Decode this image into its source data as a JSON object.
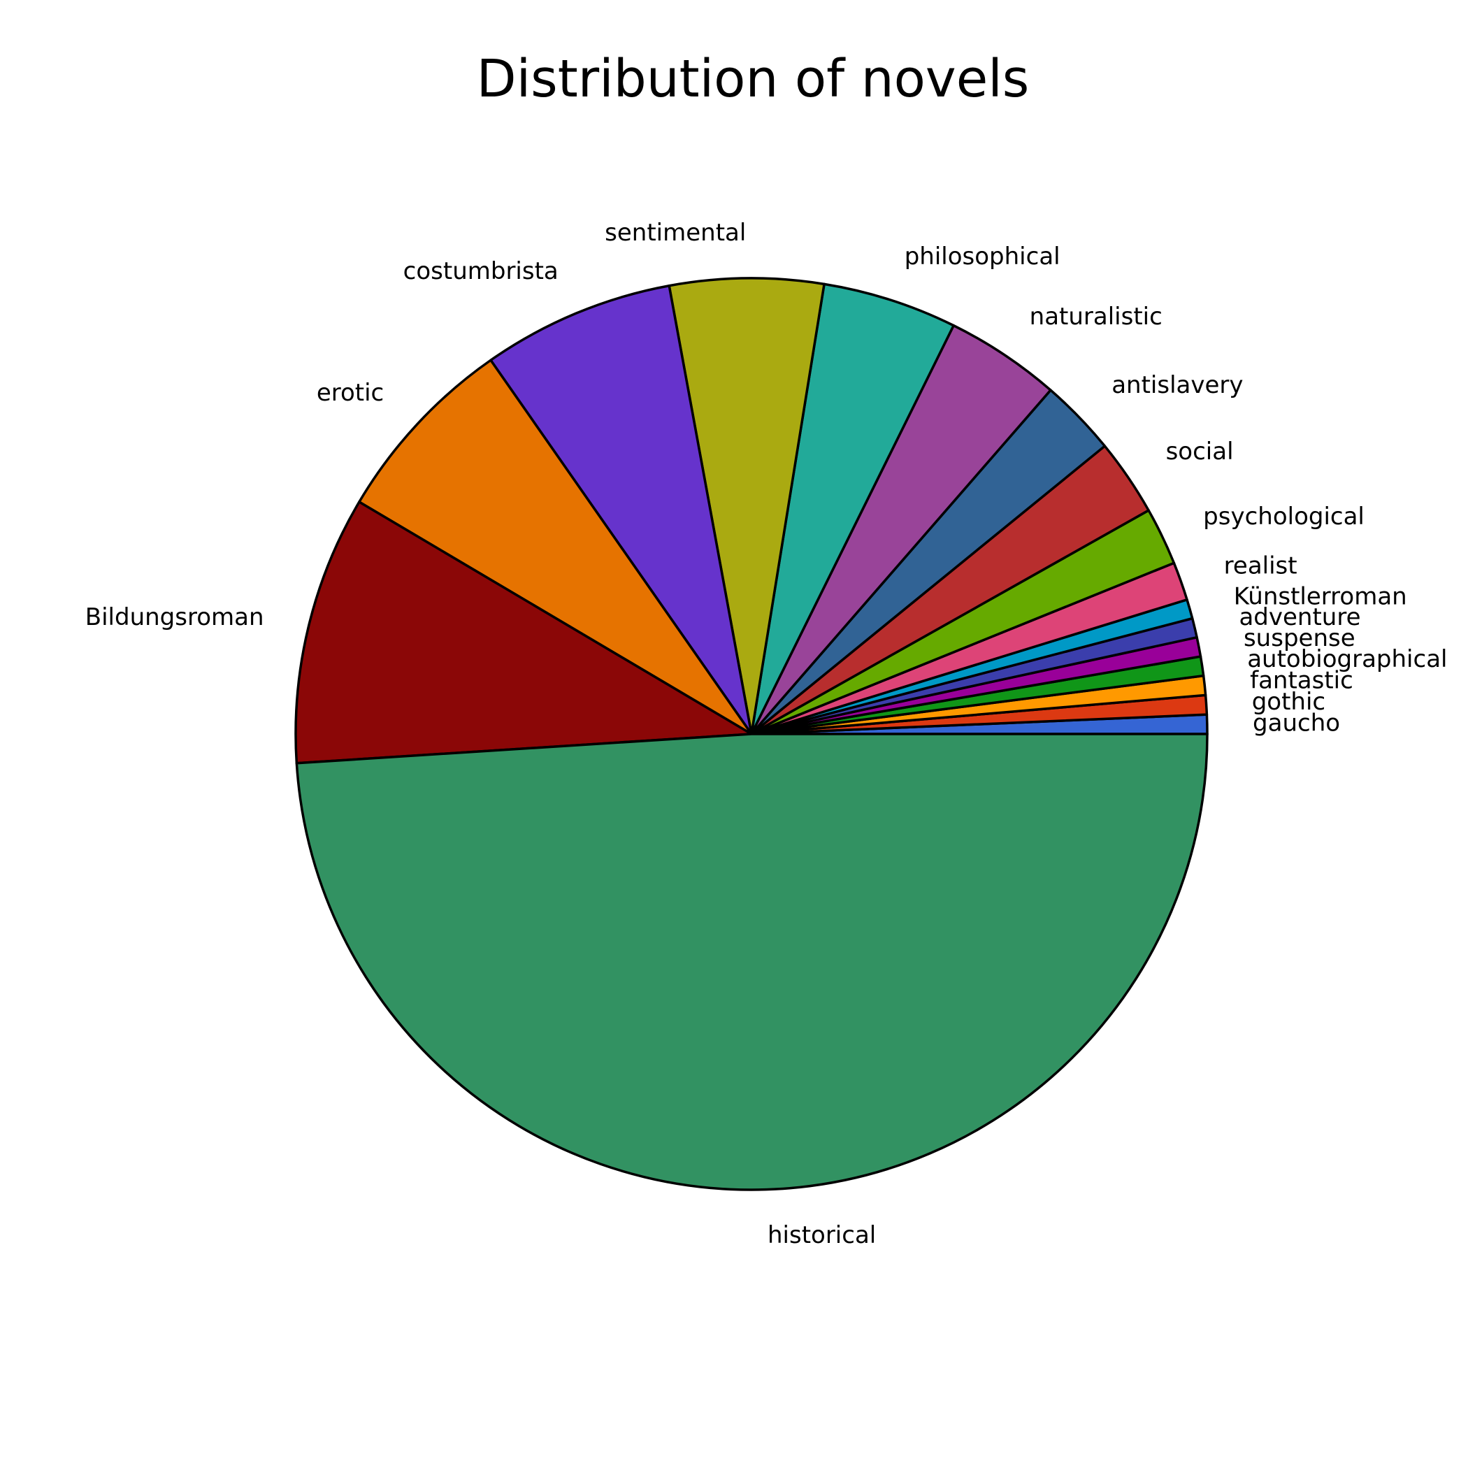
{
  "chart_data": {
    "type": "pie",
    "title": "Distribution of novels",
    "start_angle_deg": 0,
    "direction": "counterclockwise",
    "edge_color": "#000000",
    "slices": [
      {
        "label": "gaucho",
        "value": 0.5,
        "color": "#3565d4"
      },
      {
        "label": "gothic",
        "value": 0.5,
        "color": "#dc3912"
      },
      {
        "label": "fantastic",
        "value": 0.5,
        "color": "#ff9900"
      },
      {
        "label": "autobiographical",
        "value": 0.5,
        "color": "#109618"
      },
      {
        "label": "suspense",
        "value": 0.5,
        "color": "#990099"
      },
      {
        "label": "adventure",
        "value": 0.5,
        "color": "#3b3eac"
      },
      {
        "label": "Künstlerroman",
        "value": 0.5,
        "color": "#0099c6"
      },
      {
        "label": "realist",
        "value": 1.0,
        "color": "#dd4477"
      },
      {
        "label": "psychological",
        "value": 1.5,
        "color": "#66aa00"
      },
      {
        "label": "social",
        "value": 2.0,
        "color": "#b82e2e"
      },
      {
        "label": "antislavery",
        "value": 2.0,
        "color": "#316395"
      },
      {
        "label": "naturalistic",
        "value": 3.0,
        "color": "#994499"
      },
      {
        "label": "philosophical",
        "value": 3.5,
        "color": "#22aa99"
      },
      {
        "label": "sentimental",
        "value": 4.0,
        "color": "#aaaa11"
      },
      {
        "label": "costumbrista",
        "value": 5.0,
        "color": "#6633cc"
      },
      {
        "label": "erotic",
        "value": 5.0,
        "color": "#e67300"
      },
      {
        "label": "Bildungsroman",
        "value": 7.0,
        "color": "#8b0707"
      },
      {
        "label": "historical",
        "value": 36.0,
        "color": "#329262"
      }
    ]
  }
}
